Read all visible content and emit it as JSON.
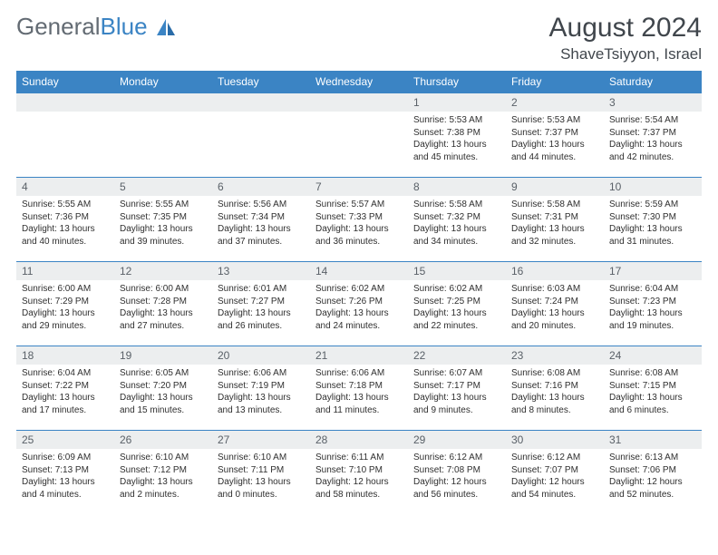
{
  "logo": {
    "text1": "General",
    "text2": "Blue"
  },
  "title": "August 2024",
  "location": "ShaveTsiyyon, Israel",
  "colors": {
    "brand_blue": "#3b84c4",
    "header_text": "#40464c",
    "daynum_bg": "#eceeef"
  },
  "weekdays": [
    "Sunday",
    "Monday",
    "Tuesday",
    "Wednesday",
    "Thursday",
    "Friday",
    "Saturday"
  ],
  "weeks": [
    [
      {
        "n": "",
        "sr": "",
        "ss": "",
        "dl": ""
      },
      {
        "n": "",
        "sr": "",
        "ss": "",
        "dl": ""
      },
      {
        "n": "",
        "sr": "",
        "ss": "",
        "dl": ""
      },
      {
        "n": "",
        "sr": "",
        "ss": "",
        "dl": ""
      },
      {
        "n": "1",
        "sr": "Sunrise: 5:53 AM",
        "ss": "Sunset: 7:38 PM",
        "dl": "Daylight: 13 hours and 45 minutes."
      },
      {
        "n": "2",
        "sr": "Sunrise: 5:53 AM",
        "ss": "Sunset: 7:37 PM",
        "dl": "Daylight: 13 hours and 44 minutes."
      },
      {
        "n": "3",
        "sr": "Sunrise: 5:54 AM",
        "ss": "Sunset: 7:37 PM",
        "dl": "Daylight: 13 hours and 42 minutes."
      }
    ],
    [
      {
        "n": "4",
        "sr": "Sunrise: 5:55 AM",
        "ss": "Sunset: 7:36 PM",
        "dl": "Daylight: 13 hours and 40 minutes."
      },
      {
        "n": "5",
        "sr": "Sunrise: 5:55 AM",
        "ss": "Sunset: 7:35 PM",
        "dl": "Daylight: 13 hours and 39 minutes."
      },
      {
        "n": "6",
        "sr": "Sunrise: 5:56 AM",
        "ss": "Sunset: 7:34 PM",
        "dl": "Daylight: 13 hours and 37 minutes."
      },
      {
        "n": "7",
        "sr": "Sunrise: 5:57 AM",
        "ss": "Sunset: 7:33 PM",
        "dl": "Daylight: 13 hours and 36 minutes."
      },
      {
        "n": "8",
        "sr": "Sunrise: 5:58 AM",
        "ss": "Sunset: 7:32 PM",
        "dl": "Daylight: 13 hours and 34 minutes."
      },
      {
        "n": "9",
        "sr": "Sunrise: 5:58 AM",
        "ss": "Sunset: 7:31 PM",
        "dl": "Daylight: 13 hours and 32 minutes."
      },
      {
        "n": "10",
        "sr": "Sunrise: 5:59 AM",
        "ss": "Sunset: 7:30 PM",
        "dl": "Daylight: 13 hours and 31 minutes."
      }
    ],
    [
      {
        "n": "11",
        "sr": "Sunrise: 6:00 AM",
        "ss": "Sunset: 7:29 PM",
        "dl": "Daylight: 13 hours and 29 minutes."
      },
      {
        "n": "12",
        "sr": "Sunrise: 6:00 AM",
        "ss": "Sunset: 7:28 PM",
        "dl": "Daylight: 13 hours and 27 minutes."
      },
      {
        "n": "13",
        "sr": "Sunrise: 6:01 AM",
        "ss": "Sunset: 7:27 PM",
        "dl": "Daylight: 13 hours and 26 minutes."
      },
      {
        "n": "14",
        "sr": "Sunrise: 6:02 AM",
        "ss": "Sunset: 7:26 PM",
        "dl": "Daylight: 13 hours and 24 minutes."
      },
      {
        "n": "15",
        "sr": "Sunrise: 6:02 AM",
        "ss": "Sunset: 7:25 PM",
        "dl": "Daylight: 13 hours and 22 minutes."
      },
      {
        "n": "16",
        "sr": "Sunrise: 6:03 AM",
        "ss": "Sunset: 7:24 PM",
        "dl": "Daylight: 13 hours and 20 minutes."
      },
      {
        "n": "17",
        "sr": "Sunrise: 6:04 AM",
        "ss": "Sunset: 7:23 PM",
        "dl": "Daylight: 13 hours and 19 minutes."
      }
    ],
    [
      {
        "n": "18",
        "sr": "Sunrise: 6:04 AM",
        "ss": "Sunset: 7:22 PM",
        "dl": "Daylight: 13 hours and 17 minutes."
      },
      {
        "n": "19",
        "sr": "Sunrise: 6:05 AM",
        "ss": "Sunset: 7:20 PM",
        "dl": "Daylight: 13 hours and 15 minutes."
      },
      {
        "n": "20",
        "sr": "Sunrise: 6:06 AM",
        "ss": "Sunset: 7:19 PM",
        "dl": "Daylight: 13 hours and 13 minutes."
      },
      {
        "n": "21",
        "sr": "Sunrise: 6:06 AM",
        "ss": "Sunset: 7:18 PM",
        "dl": "Daylight: 13 hours and 11 minutes."
      },
      {
        "n": "22",
        "sr": "Sunrise: 6:07 AM",
        "ss": "Sunset: 7:17 PM",
        "dl": "Daylight: 13 hours and 9 minutes."
      },
      {
        "n": "23",
        "sr": "Sunrise: 6:08 AM",
        "ss": "Sunset: 7:16 PM",
        "dl": "Daylight: 13 hours and 8 minutes."
      },
      {
        "n": "24",
        "sr": "Sunrise: 6:08 AM",
        "ss": "Sunset: 7:15 PM",
        "dl": "Daylight: 13 hours and 6 minutes."
      }
    ],
    [
      {
        "n": "25",
        "sr": "Sunrise: 6:09 AM",
        "ss": "Sunset: 7:13 PM",
        "dl": "Daylight: 13 hours and 4 minutes."
      },
      {
        "n": "26",
        "sr": "Sunrise: 6:10 AM",
        "ss": "Sunset: 7:12 PM",
        "dl": "Daylight: 13 hours and 2 minutes."
      },
      {
        "n": "27",
        "sr": "Sunrise: 6:10 AM",
        "ss": "Sunset: 7:11 PM",
        "dl": "Daylight: 13 hours and 0 minutes."
      },
      {
        "n": "28",
        "sr": "Sunrise: 6:11 AM",
        "ss": "Sunset: 7:10 PM",
        "dl": "Daylight: 12 hours and 58 minutes."
      },
      {
        "n": "29",
        "sr": "Sunrise: 6:12 AM",
        "ss": "Sunset: 7:08 PM",
        "dl": "Daylight: 12 hours and 56 minutes."
      },
      {
        "n": "30",
        "sr": "Sunrise: 6:12 AM",
        "ss": "Sunset: 7:07 PM",
        "dl": "Daylight: 12 hours and 54 minutes."
      },
      {
        "n": "31",
        "sr": "Sunrise: 6:13 AM",
        "ss": "Sunset: 7:06 PM",
        "dl": "Daylight: 12 hours and 52 minutes."
      }
    ]
  ]
}
